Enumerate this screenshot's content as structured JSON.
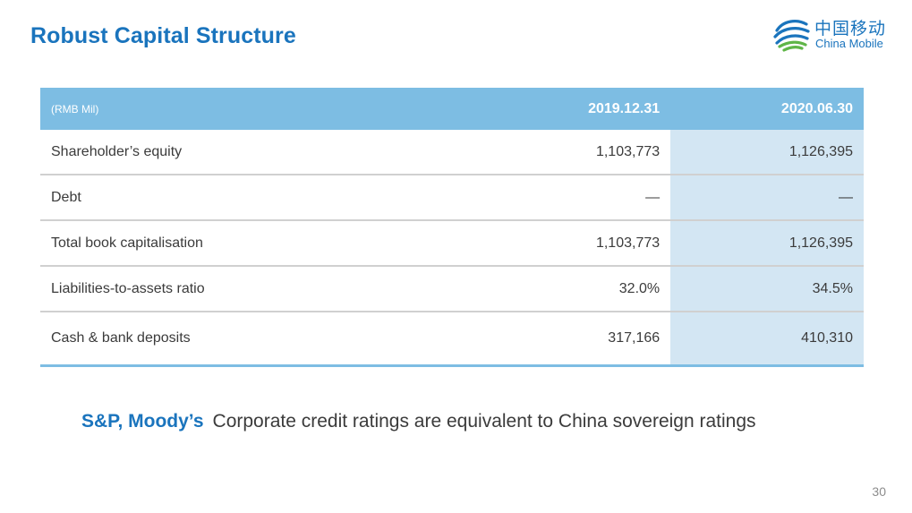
{
  "title": "Robust Capital Structure",
  "logo": {
    "name_cn": "中国移动",
    "name_en": "China Mobile",
    "brand_color": "#1a74bd"
  },
  "table": {
    "unit_label": "(RMB Mil)",
    "columns": [
      "2019.12.31",
      "2020.06.30"
    ],
    "rows": [
      {
        "label": "Shareholder’s equity",
        "values": [
          "1,103,773",
          "1,126,395"
        ]
      },
      {
        "label": "Debt",
        "values": [
          "—",
          "—"
        ]
      },
      {
        "label": "Total book capitalisation",
        "values": [
          "1,103,773",
          "1,126,395"
        ]
      },
      {
        "label": "Liabilities-to-assets ratio",
        "values": [
          "32.0%",
          "34.5%"
        ]
      },
      {
        "label": "Cash & bank deposits",
        "values": [
          "317,166",
          "410,310"
        ]
      }
    ],
    "header_color": "#7dbde3",
    "highlight_color": "#d3e6f3"
  },
  "rating": {
    "agencies": "S&P, Moody’s",
    "text": "Corporate credit ratings are equivalent to China sovereign ratings"
  },
  "page_number": "30"
}
